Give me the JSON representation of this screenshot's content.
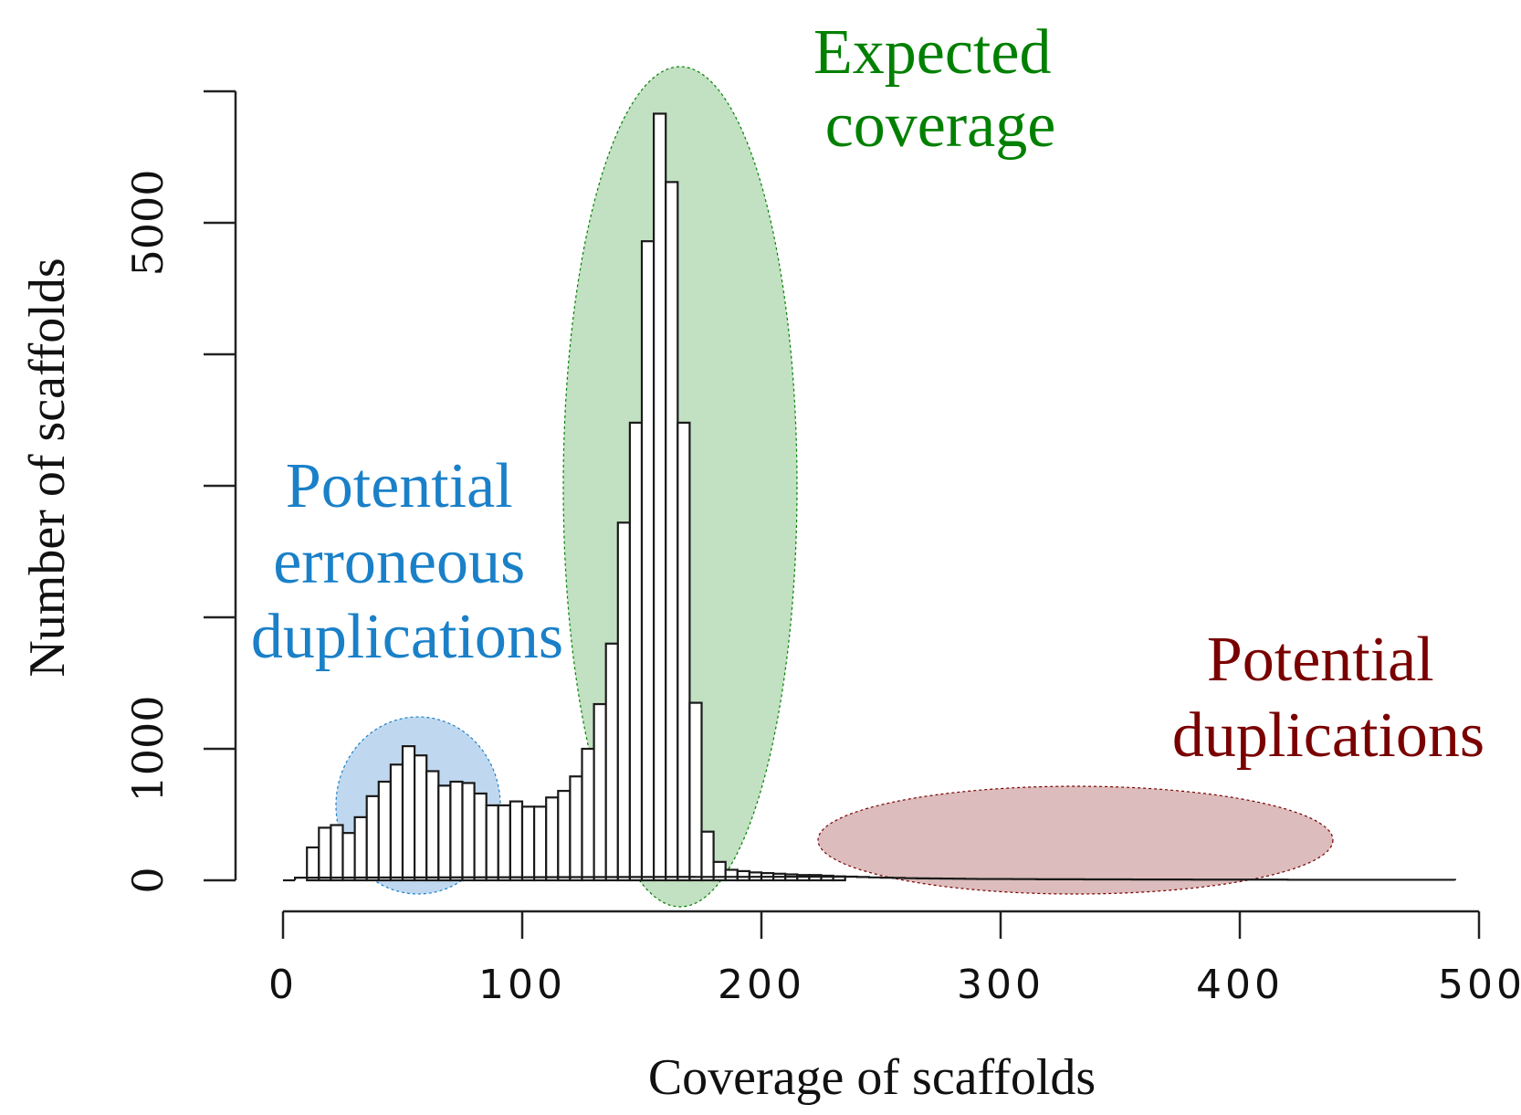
{
  "chart_data": {
    "type": "bar",
    "xlabel": "Coverage of scaffolds",
    "ylabel": "Number of scaffolds",
    "xlim": [
      0,
      500
    ],
    "ylim": [
      0,
      5000
    ],
    "x_ticks": [
      0,
      100,
      200,
      300,
      400,
      500
    ],
    "x_tick_labels": [
      "0",
      "100",
      "200",
      "300",
      "400",
      "500"
    ],
    "y_ticks": [
      0,
      1000,
      2000,
      3000,
      4000,
      5000
    ],
    "y_tick_labels": [
      "0",
      "1000",
      "",
      "",
      "",
      "5000"
    ],
    "bin_width": 5,
    "bins_start": [
      5,
      10,
      15,
      20,
      25,
      30,
      35,
      40,
      45,
      50,
      55,
      60,
      65,
      70,
      75,
      80,
      85,
      90,
      95,
      100,
      105,
      110,
      115,
      120,
      125,
      130,
      135,
      140,
      145,
      150,
      155,
      160,
      165,
      170,
      175,
      180,
      185,
      190,
      195,
      200,
      205,
      210,
      215,
      220,
      225,
      230,
      235,
      240,
      245,
      250,
      255,
      260,
      265,
      270,
      275,
      280,
      285,
      290,
      295,
      300,
      305,
      310,
      315,
      320,
      325,
      330,
      335,
      340,
      345,
      350,
      355,
      360,
      365,
      370,
      375,
      380,
      385,
      390,
      395,
      400,
      405,
      410,
      415,
      420,
      425,
      430,
      435,
      440,
      445,
      450,
      455,
      460,
      465,
      470,
      475,
      480,
      485
    ],
    "values": [
      20,
      250,
      400,
      420,
      360,
      480,
      640,
      750,
      880,
      1020,
      950,
      830,
      720,
      750,
      740,
      660,
      570,
      570,
      600,
      560,
      560,
      630,
      680,
      790,
      1000,
      1340,
      1800,
      2720,
      3480,
      4860,
      5830,
      5310,
      3480,
      1350,
      370,
      140,
      80,
      70,
      60,
      55,
      50,
      45,
      40,
      40,
      35,
      30,
      28,
      25,
      22,
      20,
      18,
      16,
      15,
      14,
      13,
      12,
      11,
      10,
      10,
      10,
      9,
      9,
      8,
      8,
      8,
      8,
      7,
      7,
      7,
      7,
      6,
      6,
      6,
      6,
      6,
      5,
      5,
      5,
      5,
      5,
      5,
      5,
      5,
      4,
      4,
      4,
      4,
      4,
      4,
      4,
      4,
      4,
      4,
      4,
      4,
      4,
      4
    ],
    "annotations": [
      {
        "lines": [
          "Expected",
          "coverage"
        ],
        "color": "#008000",
        "fill": "#c2e0c2"
      },
      {
        "lines": [
          "Potential",
          "erroneous",
          "duplications"
        ],
        "color": "#1a80c8",
        "fill": "#c0d8ef"
      },
      {
        "lines": [
          "Potential",
          "duplications"
        ],
        "color": "#7a0000",
        "fill": "#dcbcbc"
      }
    ]
  }
}
